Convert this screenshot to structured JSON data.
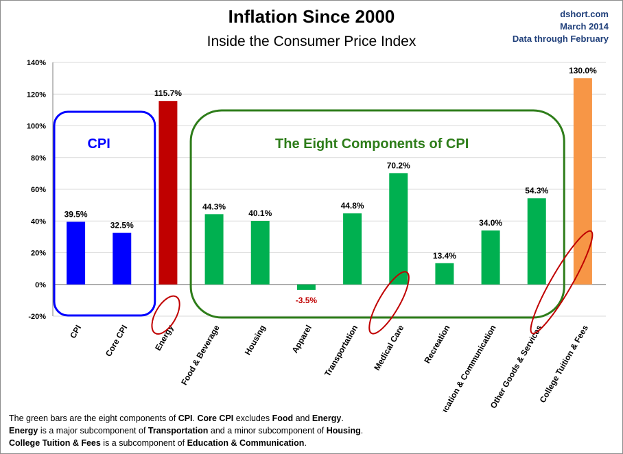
{
  "header": {
    "title": "Inflation Since 2000",
    "subtitle": "Inside the Consumer Price Index",
    "source_site": "dshort.com",
    "source_date": "March 2014",
    "source_through": "Data through February"
  },
  "colors": {
    "cpi": "#0000ff",
    "energy": "#c00000",
    "components": "#00b050",
    "tuition": "#f79646",
    "cpi_box": "#0000ff",
    "components_box": "#2e7d1a",
    "highlight_ellipse": "#c00000",
    "negative_label": "#c00000"
  },
  "annotations": {
    "cpi_group": "CPI",
    "components_group": "The Eight Components of CPI"
  },
  "chart_data": {
    "type": "bar",
    "title": "Inflation Since 2000",
    "subtitle": "Inside the Consumer Price Index",
    "xlabel": "",
    "ylabel": "",
    "ylim": [
      -20,
      140
    ],
    "yticks": [
      "-20%",
      "0%",
      "20%",
      "40%",
      "60%",
      "80%",
      "100%",
      "120%",
      "140%"
    ],
    "grid": true,
    "categories": [
      "CPI",
      "Core CPI",
      "Energy",
      "Food & Beverage",
      "Housing",
      "Apparel",
      "Transportation",
      "Medical Care",
      "Recreation",
      "Education & Communication",
      "Other Goods & Services",
      "College Tuition & Fees"
    ],
    "values": [
      39.5,
      32.5,
      115.7,
      44.3,
      40.1,
      -3.5,
      44.8,
      70.2,
      13.4,
      34.0,
      54.3,
      130.0
    ],
    "value_labels": [
      "39.5%",
      "32.5%",
      "115.7%",
      "44.3%",
      "40.1%",
      "-3.5%",
      "44.8%",
      "70.2%",
      "13.4%",
      "34.0%",
      "54.3%",
      "130.0%"
    ],
    "bar_groups": [
      "cpi",
      "cpi",
      "energy",
      "components",
      "components",
      "components",
      "components",
      "components",
      "components",
      "components",
      "components",
      "tuition"
    ],
    "highlighted": [
      "Energy",
      "Medical Care",
      "College Tuition & Fees"
    ]
  },
  "footnote": {
    "line1": [
      {
        "t": "The green bars are the eight components of ",
        "b": false
      },
      {
        "t": "CPI",
        "b": true
      },
      {
        "t": ". ",
        "b": false
      },
      {
        "t": "Core CPI",
        "b": true
      },
      {
        "t": " excludes ",
        "b": false
      },
      {
        "t": "Food",
        "b": true
      },
      {
        "t": " and ",
        "b": false
      },
      {
        "t": "Energy",
        "b": true
      },
      {
        "t": ".",
        "b": false
      }
    ],
    "line2": [
      {
        "t": "Energy",
        "b": true
      },
      {
        "t": " is a  major subcomponent of ",
        "b": false
      },
      {
        "t": "Transportation",
        "b": true
      },
      {
        "t": " and a minor subcomponent of ",
        "b": false
      },
      {
        "t": "Housing",
        "b": true
      },
      {
        "t": ".",
        "b": false
      }
    ],
    "line3": [
      {
        "t": "College Tuition & Fees",
        "b": true
      },
      {
        "t": " is a subcomponent of ",
        "b": false
      },
      {
        "t": "Education & Communication",
        "b": true
      },
      {
        "t": ".",
        "b": false
      }
    ]
  }
}
